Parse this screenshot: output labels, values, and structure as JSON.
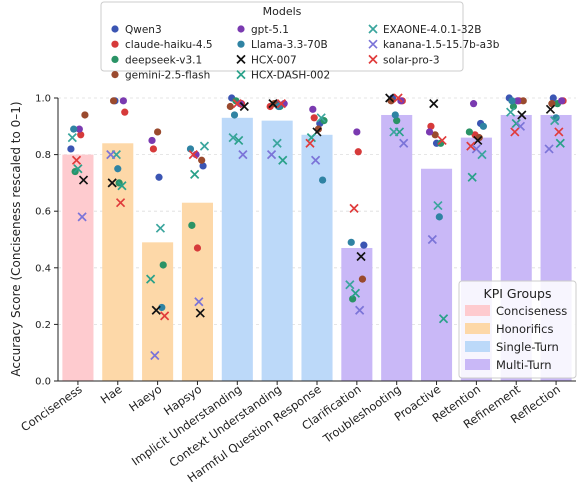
{
  "chart_data": {
    "type": "bar",
    "ylabel": "Accuracy Score (Conciseness rescaled to 0–1)",
    "ylim": [
      0.0,
      1.0
    ],
    "yticks": [
      "0.0",
      "0.2",
      "0.4",
      "0.6",
      "0.8",
      "1.0"
    ],
    "grid": true,
    "categories": [
      "Conciseness",
      "Hae",
      "Haeyo",
      "Hapsyo",
      "Implicit Understanding",
      "Context Understanding",
      "Harmful Question Response",
      "Clarification",
      "Troubleshooting",
      "Proactive",
      "Retention",
      "Refinement",
      "Reflection"
    ],
    "category_groups": [
      "Conciseness",
      "Honorifics",
      "Honorifics",
      "Honorifics",
      "Single-Turn",
      "Single-Turn",
      "Single-Turn",
      "Multi-Turn",
      "Multi-Turn",
      "Multi-Turn",
      "Multi-Turn",
      "Multi-Turn",
      "Multi-Turn"
    ],
    "bar_values": [
      0.8,
      0.84,
      0.49,
      0.63,
      0.93,
      0.92,
      0.87,
      0.47,
      0.94,
      0.75,
      0.86,
      0.94,
      0.94
    ],
    "groups_legend": {
      "title": "KPI Groups",
      "placement": "lower-right",
      "items": [
        {
          "name": "Conciseness",
          "color": "#fecbcf"
        },
        {
          "name": "Honorifics",
          "color": "#fdd8a8"
        },
        {
          "name": "Single-Turn",
          "color": "#bcd9f9"
        },
        {
          "name": "Multi-Turn",
          "color": "#c9b8f7"
        }
      ]
    },
    "models_legend": {
      "title": "Models",
      "placement": "top-center",
      "columns": 3
    },
    "series": [
      {
        "name": "Qwen3",
        "marker": "circle",
        "color": "#3b55b3",
        "values": [
          0.82,
          0.99,
          0.72,
          0.76,
          1.0,
          0.98,
          0.91,
          0.48,
          1.0,
          0.84,
          0.91,
          1.0,
          1.0
        ]
      },
      {
        "name": "claude-haiku-4.5",
        "marker": "circle",
        "color": "#d63a3a",
        "values": [
          0.87,
          0.95,
          0.82,
          0.47,
          0.98,
          0.97,
          0.93,
          0.81,
          0.99,
          0.9,
          0.87,
          0.99,
          0.99
        ]
      },
      {
        "name": "deepseek-v3.1",
        "marker": "circle",
        "color": "#2a9366",
        "values": [
          0.74,
          0.7,
          0.41,
          0.55,
          0.99,
          0.97,
          0.92,
          0.29,
          0.92,
          0.84,
          0.88,
          0.97,
          0.98
        ]
      },
      {
        "name": "gemini-2.5-flash",
        "marker": "circle",
        "color": "#9a4a2e",
        "values": [
          0.94,
          0.99,
          0.88,
          0.78,
          0.97,
          0.98,
          0.89,
          0.36,
          0.99,
          0.87,
          0.86,
          0.99,
          0.98
        ]
      },
      {
        "name": "gpt-5.1",
        "marker": "circle",
        "color": "#7a3ab0",
        "values": [
          0.89,
          0.99,
          0.85,
          0.8,
          0.98,
          0.98,
          0.96,
          0.88,
          0.99,
          0.88,
          0.98,
          0.99,
          0.99
        ]
      },
      {
        "name": "Llama-3.3-70B",
        "marker": "circle",
        "color": "#2f83a3",
        "values": [
          0.89,
          0.75,
          0.26,
          0.82,
          0.94,
          0.97,
          0.71,
          0.49,
          0.94,
          0.58,
          0.9,
          0.99,
          0.93
        ]
      },
      {
        "name": "HCX-007",
        "marker": "x",
        "color": "#111111",
        "values": [
          0.71,
          0.7,
          0.25,
          0.24,
          0.97,
          0.98,
          0.88,
          0.44,
          1.0,
          0.98,
          0.85,
          0.94,
          0.96
        ]
      },
      {
        "name": "HCX-DASH-002",
        "marker": "x",
        "color": "#2aa18a",
        "values": [
          0.75,
          0.69,
          0.36,
          0.73,
          0.85,
          0.78,
          0.86,
          0.31,
          0.88,
          0.22,
          0.72,
          0.91,
          0.84
        ]
      },
      {
        "name": "EXAONE-4.0.1-32B",
        "marker": "x",
        "color": "#3aa59d",
        "values": [
          0.86,
          0.8,
          0.54,
          0.83,
          0.86,
          0.84,
          0.93,
          0.34,
          0.88,
          0.62,
          0.8,
          0.95,
          0.92
        ]
      },
      {
        "name": "kanana-1.5-15.7b-a3b",
        "marker": "x",
        "color": "#7b74d8",
        "values": [
          0.58,
          0.8,
          0.09,
          0.28,
          0.8,
          0.8,
          0.78,
          0.25,
          0.84,
          0.5,
          0.82,
          0.9,
          0.82
        ]
      },
      {
        "name": "solar-pro-3",
        "marker": "x",
        "color": "#e03b3b",
        "values": [
          0.78,
          0.63,
          0.23,
          0.8,
          0.98,
          0.98,
          0.84,
          0.61,
          1.0,
          0.85,
          0.83,
          0.88,
          0.88
        ]
      }
    ]
  }
}
